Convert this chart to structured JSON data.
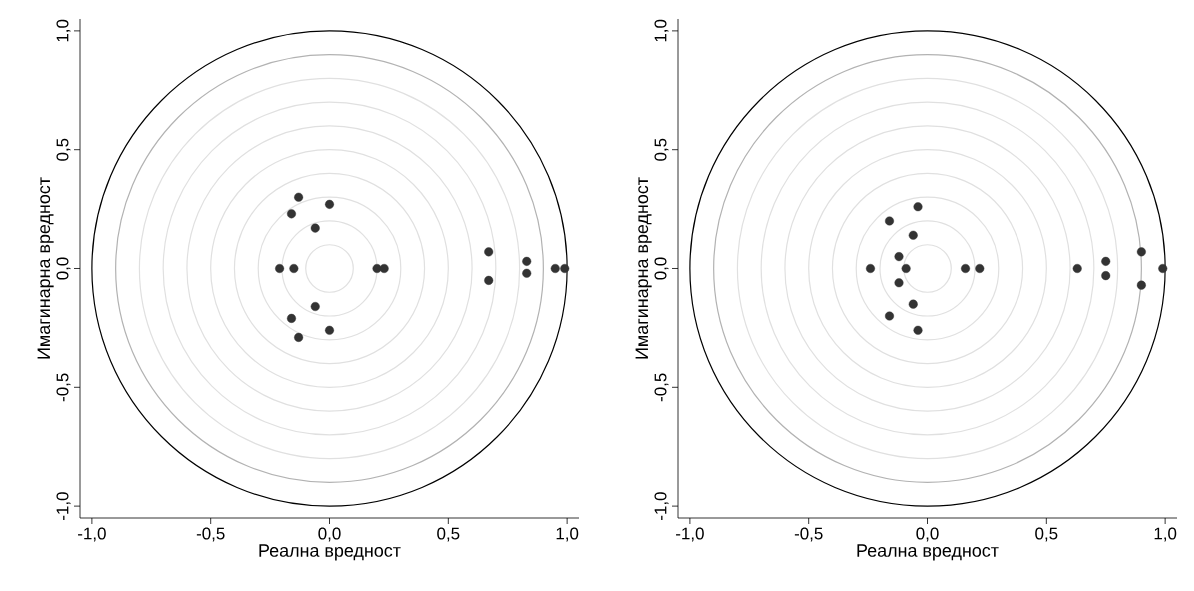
{
  "chart_data": [
    {
      "type": "scatter",
      "xlabel": "Реална вредност",
      "ylabel": "Имагинарна вредност",
      "xlim": [
        -1.05,
        1.05
      ],
      "ylim": [
        -1.05,
        1.05
      ],
      "xticks": [
        {
          "value": -1,
          "label": "-1,0"
        },
        {
          "value": -0.5,
          "label": "-0,5"
        },
        {
          "value": 0,
          "label": "0,0"
        },
        {
          "value": 0.5,
          "label": "0,5"
        },
        {
          "value": 1,
          "label": "1,0"
        }
      ],
      "yticks": [
        {
          "value": -1,
          "label": "-1,0"
        },
        {
          "value": -0.5,
          "label": "-0,5"
        },
        {
          "value": 0,
          "label": "0,0"
        },
        {
          "value": 0.5,
          "label": "0,5"
        },
        {
          "value": 1,
          "label": "1,0"
        }
      ],
      "series": [
        {
          "color": "#333333",
          "x": [
            -0.13,
            0.0,
            -0.16,
            -0.06,
            -0.21,
            -0.15,
            0.2,
            0.23,
            -0.06,
            -0.16,
            0.0,
            -0.13,
            0.67,
            0.67,
            0.83,
            0.83,
            0.95,
            0.99
          ],
          "values": [
            0.3,
            0.27,
            0.23,
            0.17,
            0.0,
            0.0,
            0.0,
            0.0,
            -0.16,
            -0.21,
            -0.26,
            -0.29,
            0.07,
            -0.05,
            0.03,
            -0.02,
            0.0,
            0.0
          ]
        }
      ]
    },
    {
      "type": "scatter",
      "xlabel": "Реална вредност",
      "ylabel": "Имагинарна вредност",
      "xlim": [
        -1.05,
        1.05
      ],
      "ylim": [
        -1.05,
        1.05
      ],
      "xticks": [
        {
          "value": -1,
          "label": "-1,0"
        },
        {
          "value": -0.5,
          "label": "-0,5"
        },
        {
          "value": 0,
          "label": "0,0"
        },
        {
          "value": 0.5,
          "label": "0,5"
        },
        {
          "value": 1,
          "label": "1,0"
        }
      ],
      "yticks": [
        {
          "value": -1,
          "label": "-1,0"
        },
        {
          "value": -0.5,
          "label": "-0,5"
        },
        {
          "value": 0,
          "label": "0,0"
        },
        {
          "value": 0.5,
          "label": "0,5"
        },
        {
          "value": 1,
          "label": "1,0"
        }
      ],
      "series": [
        {
          "color": "#333333",
          "x": [
            -0.16,
            -0.04,
            -0.06,
            -0.12,
            -0.24,
            -0.09,
            -0.12,
            -0.06,
            -0.16,
            -0.04,
            0.16,
            0.22,
            0.63,
            0.75,
            0.75,
            0.9,
            0.9,
            0.99
          ],
          "values": [
            0.2,
            0.26,
            0.14,
            0.05,
            0.0,
            0.0,
            -0.06,
            -0.15,
            -0.2,
            -0.26,
            0.0,
            0.0,
            0.0,
            0.03,
            -0.03,
            0.07,
            -0.07,
            0.0
          ]
        }
      ]
    }
  ]
}
